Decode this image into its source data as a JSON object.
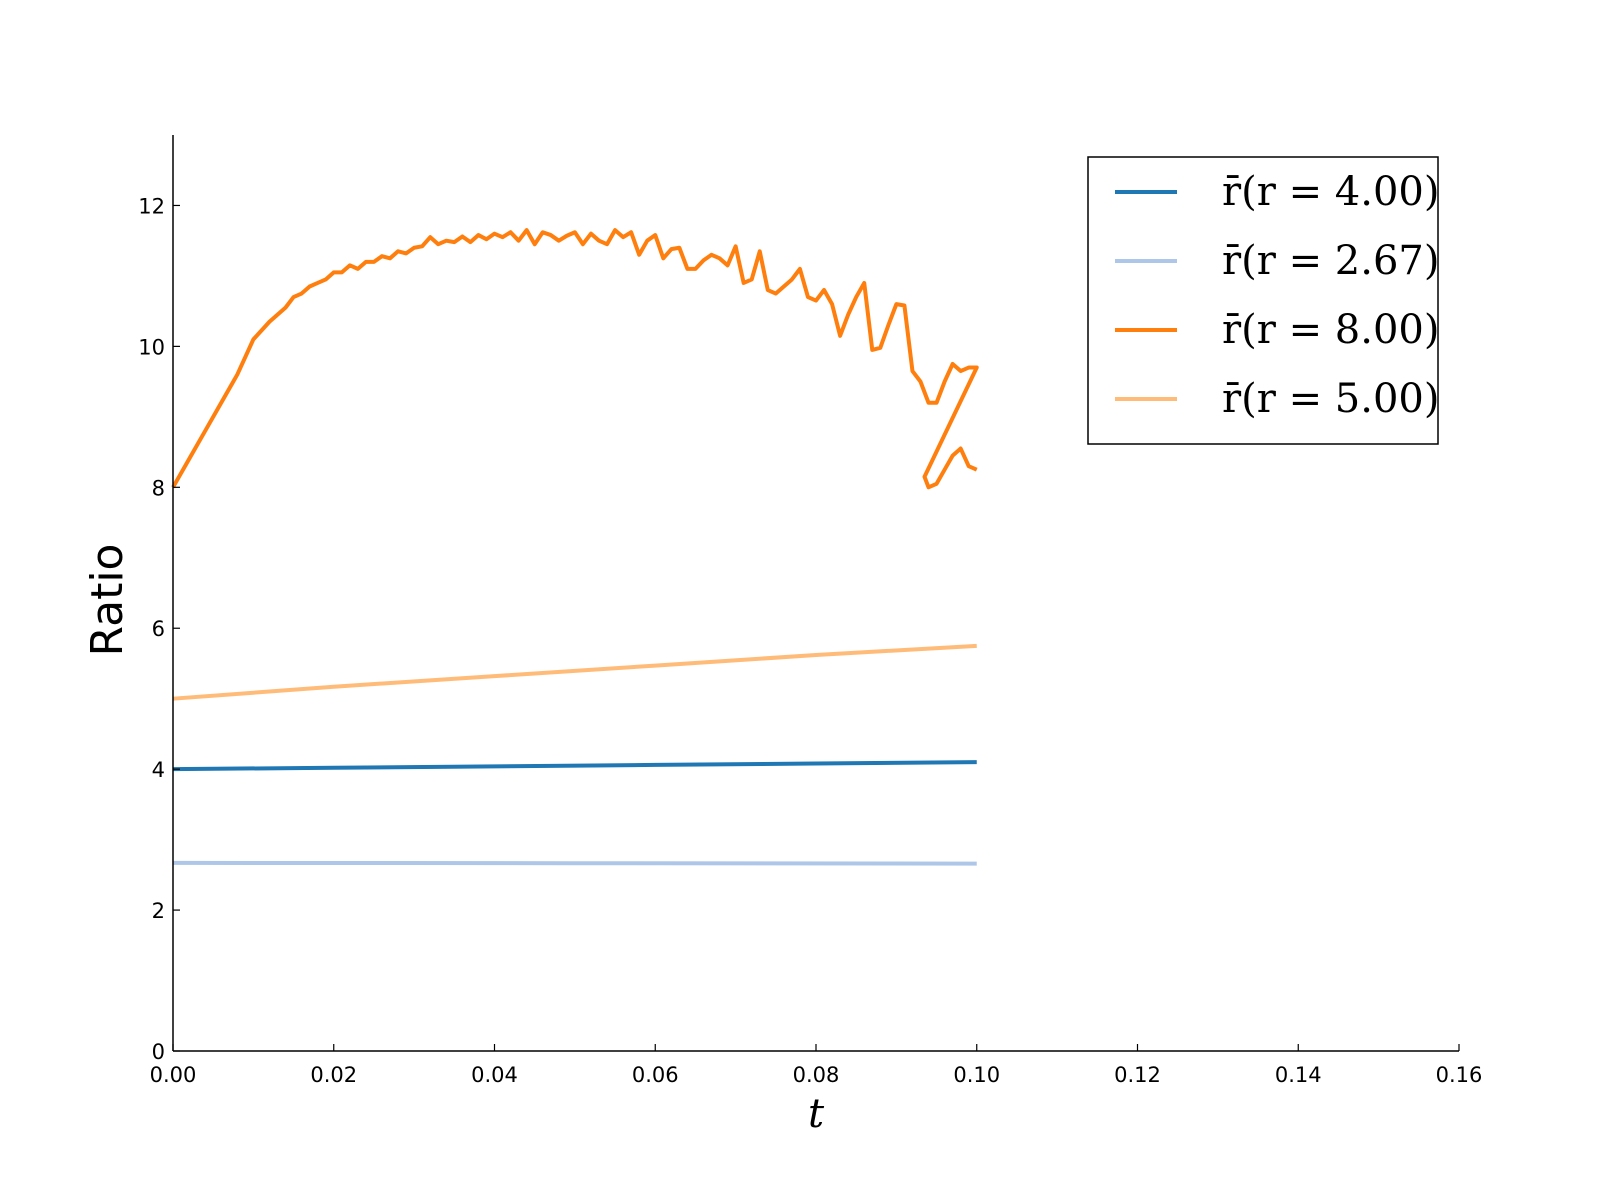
{
  "chart_data": {
    "type": "line",
    "xlabel": "t",
    "ylabel": "Ratio",
    "xlim": [
      0.0,
      0.16
    ],
    "ylim": [
      0,
      13
    ],
    "x_ticks": [
      "0.00",
      "0.02",
      "0.04",
      "0.06",
      "0.08",
      "0.10",
      "0.12",
      "0.14",
      "0.16"
    ],
    "y_ticks": [
      "0",
      "2",
      "4",
      "6",
      "8",
      "10",
      "12"
    ],
    "grid": false,
    "legend_position": "top-right",
    "series": [
      {
        "name": "r̄(r = 4.00)",
        "color": "#1f77b4",
        "points": [
          [
            0.0,
            4.0
          ],
          [
            0.02,
            4.02
          ],
          [
            0.04,
            4.04
          ],
          [
            0.06,
            4.06
          ],
          [
            0.08,
            4.08
          ],
          [
            0.1,
            4.1
          ]
        ]
      },
      {
        "name": "r̄(r = 2.67)",
        "color": "#aec7e8",
        "points": [
          [
            0.0,
            2.67
          ],
          [
            0.05,
            2.665
          ],
          [
            0.1,
            2.66
          ]
        ]
      },
      {
        "name": "r̄(r = 8.00)",
        "color": "#ff7f0e",
        "points": [
          [
            0.0,
            8.0
          ],
          [
            0.002,
            8.4
          ],
          [
            0.004,
            8.8
          ],
          [
            0.006,
            9.2
          ],
          [
            0.008,
            9.6
          ],
          [
            0.01,
            10.1
          ],
          [
            0.012,
            10.35
          ],
          [
            0.014,
            10.55
          ],
          [
            0.015,
            10.7
          ],
          [
            0.016,
            10.75
          ],
          [
            0.017,
            10.85
          ],
          [
            0.018,
            10.9
          ],
          [
            0.019,
            10.95
          ],
          [
            0.02,
            11.05
          ],
          [
            0.021,
            11.05
          ],
          [
            0.022,
            11.15
          ],
          [
            0.023,
            11.1
          ],
          [
            0.024,
            11.2
          ],
          [
            0.025,
            11.2
          ],
          [
            0.026,
            11.28
          ],
          [
            0.027,
            11.25
          ],
          [
            0.028,
            11.35
          ],
          [
            0.029,
            11.32
          ],
          [
            0.03,
            11.4
          ],
          [
            0.031,
            11.42
          ],
          [
            0.032,
            11.55
          ],
          [
            0.033,
            11.45
          ],
          [
            0.034,
            11.5
          ],
          [
            0.035,
            11.48
          ],
          [
            0.036,
            11.56
          ],
          [
            0.037,
            11.48
          ],
          [
            0.038,
            11.58
          ],
          [
            0.039,
            11.52
          ],
          [
            0.04,
            11.6
          ],
          [
            0.041,
            11.55
          ],
          [
            0.042,
            11.62
          ],
          [
            0.043,
            11.5
          ],
          [
            0.044,
            11.65
          ],
          [
            0.045,
            11.45
          ],
          [
            0.046,
            11.62
          ],
          [
            0.047,
            11.58
          ],
          [
            0.048,
            11.5
          ],
          [
            0.049,
            11.57
          ],
          [
            0.05,
            11.62
          ],
          [
            0.051,
            11.45
          ],
          [
            0.052,
            11.6
          ],
          [
            0.053,
            11.5
          ],
          [
            0.054,
            11.45
          ],
          [
            0.055,
            11.65
          ],
          [
            0.056,
            11.55
          ],
          [
            0.057,
            11.62
          ],
          [
            0.058,
            11.3
          ],
          [
            0.059,
            11.5
          ],
          [
            0.06,
            11.58
          ],
          [
            0.061,
            11.25
          ],
          [
            0.062,
            11.38
          ],
          [
            0.063,
            11.4
          ],
          [
            0.064,
            11.1
          ],
          [
            0.065,
            11.1
          ],
          [
            0.066,
            11.22
          ],
          [
            0.067,
            11.3
          ],
          [
            0.068,
            11.25
          ],
          [
            0.069,
            11.15
          ],
          [
            0.07,
            11.42
          ],
          [
            0.071,
            10.9
          ],
          [
            0.072,
            10.95
          ],
          [
            0.073,
            11.35
          ],
          [
            0.074,
            10.8
          ],
          [
            0.075,
            10.75
          ],
          [
            0.076,
            10.85
          ],
          [
            0.077,
            10.95
          ],
          [
            0.078,
            11.1
          ],
          [
            0.079,
            10.7
          ],
          [
            0.08,
            10.65
          ],
          [
            0.081,
            10.8
          ],
          [
            0.082,
            10.6
          ],
          [
            0.083,
            10.15
          ],
          [
            0.084,
            10.45
          ],
          [
            0.085,
            10.7
          ],
          [
            0.086,
            10.9
          ],
          [
            0.087,
            9.95
          ],
          [
            0.088,
            9.98
          ],
          [
            0.089,
            10.3
          ],
          [
            0.09,
            10.6
          ],
          [
            0.091,
            10.58
          ],
          [
            0.092,
            9.65
          ],
          [
            0.093,
            9.5
          ],
          [
            0.094,
            9.2
          ],
          [
            0.095,
            9.2
          ],
          [
            0.096,
            9.5
          ],
          [
            0.097,
            9.75
          ],
          [
            0.098,
            9.65
          ],
          [
            0.099,
            9.7
          ],
          [
            0.1,
            9.7
          ],
          [
            0.0935,
            8.15
          ],
          [
            0.094,
            8.0
          ],
          [
            0.095,
            8.05
          ],
          [
            0.096,
            8.25
          ],
          [
            0.097,
            8.45
          ],
          [
            0.098,
            8.55
          ],
          [
            0.099,
            8.3
          ],
          [
            0.1,
            8.25
          ]
        ]
      },
      {
        "name": "r̄(r = 5.00)",
        "color": "#ffbb78",
        "points": [
          [
            0.0,
            5.0
          ],
          [
            0.02,
            5.17
          ],
          [
            0.04,
            5.32
          ],
          [
            0.06,
            5.47
          ],
          [
            0.08,
            5.62
          ],
          [
            0.1,
            5.75
          ]
        ]
      }
    ]
  }
}
